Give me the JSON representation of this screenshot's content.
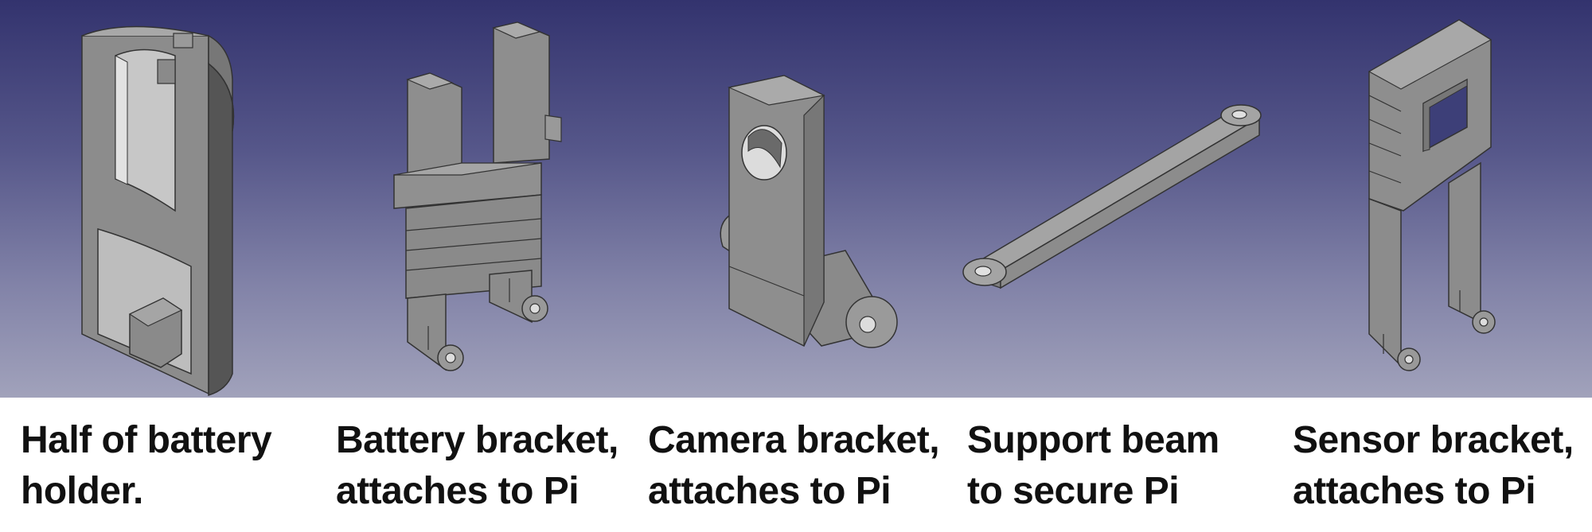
{
  "panels": [
    {
      "caption": [
        "Half of battery",
        "holder."
      ]
    },
    {
      "caption": [
        "Battery bracket,",
        "attaches to Pi"
      ]
    },
    {
      "caption": [
        "Camera bracket,",
        "attaches to Pi"
      ]
    },
    {
      "caption": [
        "Support beam",
        "to secure Pi"
      ]
    },
    {
      "caption": [
        "Sensor bracket,",
        "attaches to Pi"
      ]
    }
  ],
  "colors": {
    "background_top": "#33336e",
    "background_bottom": "#a1a2bb",
    "part_face": "#8e8e8e",
    "part_side": "#6d6d6d",
    "part_top": "#a9a9a9"
  }
}
